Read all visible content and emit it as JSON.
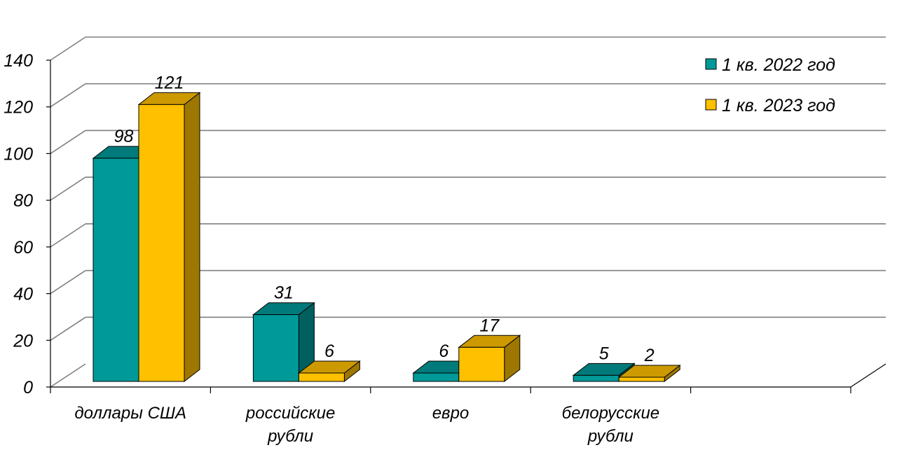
{
  "chart_data": {
    "type": "bar",
    "three_d": true,
    "categories": [
      [
        "доллары США"
      ],
      [
        "российские",
        "рубли"
      ],
      [
        "евро"
      ],
      [
        "белорусские",
        "рубли"
      ]
    ],
    "series": [
      {
        "name": "1 кв. 2022 год",
        "values": [
          98,
          31,
          6,
          5
        ],
        "color": "#009999"
      },
      {
        "name": "1 кв. 2023 год",
        "values": [
          121,
          6,
          17,
          2
        ],
        "color": "#FFC000"
      }
    ],
    "ylim": [
      0,
      140
    ],
    "yticks": [
      "0",
      "20",
      "40",
      "60",
      "80",
      "100",
      "120",
      "140"
    ],
    "grid": true,
    "legend_position": "top-right",
    "data_labels": true,
    "title": "",
    "xlabel": "",
    "ylabel": ""
  }
}
